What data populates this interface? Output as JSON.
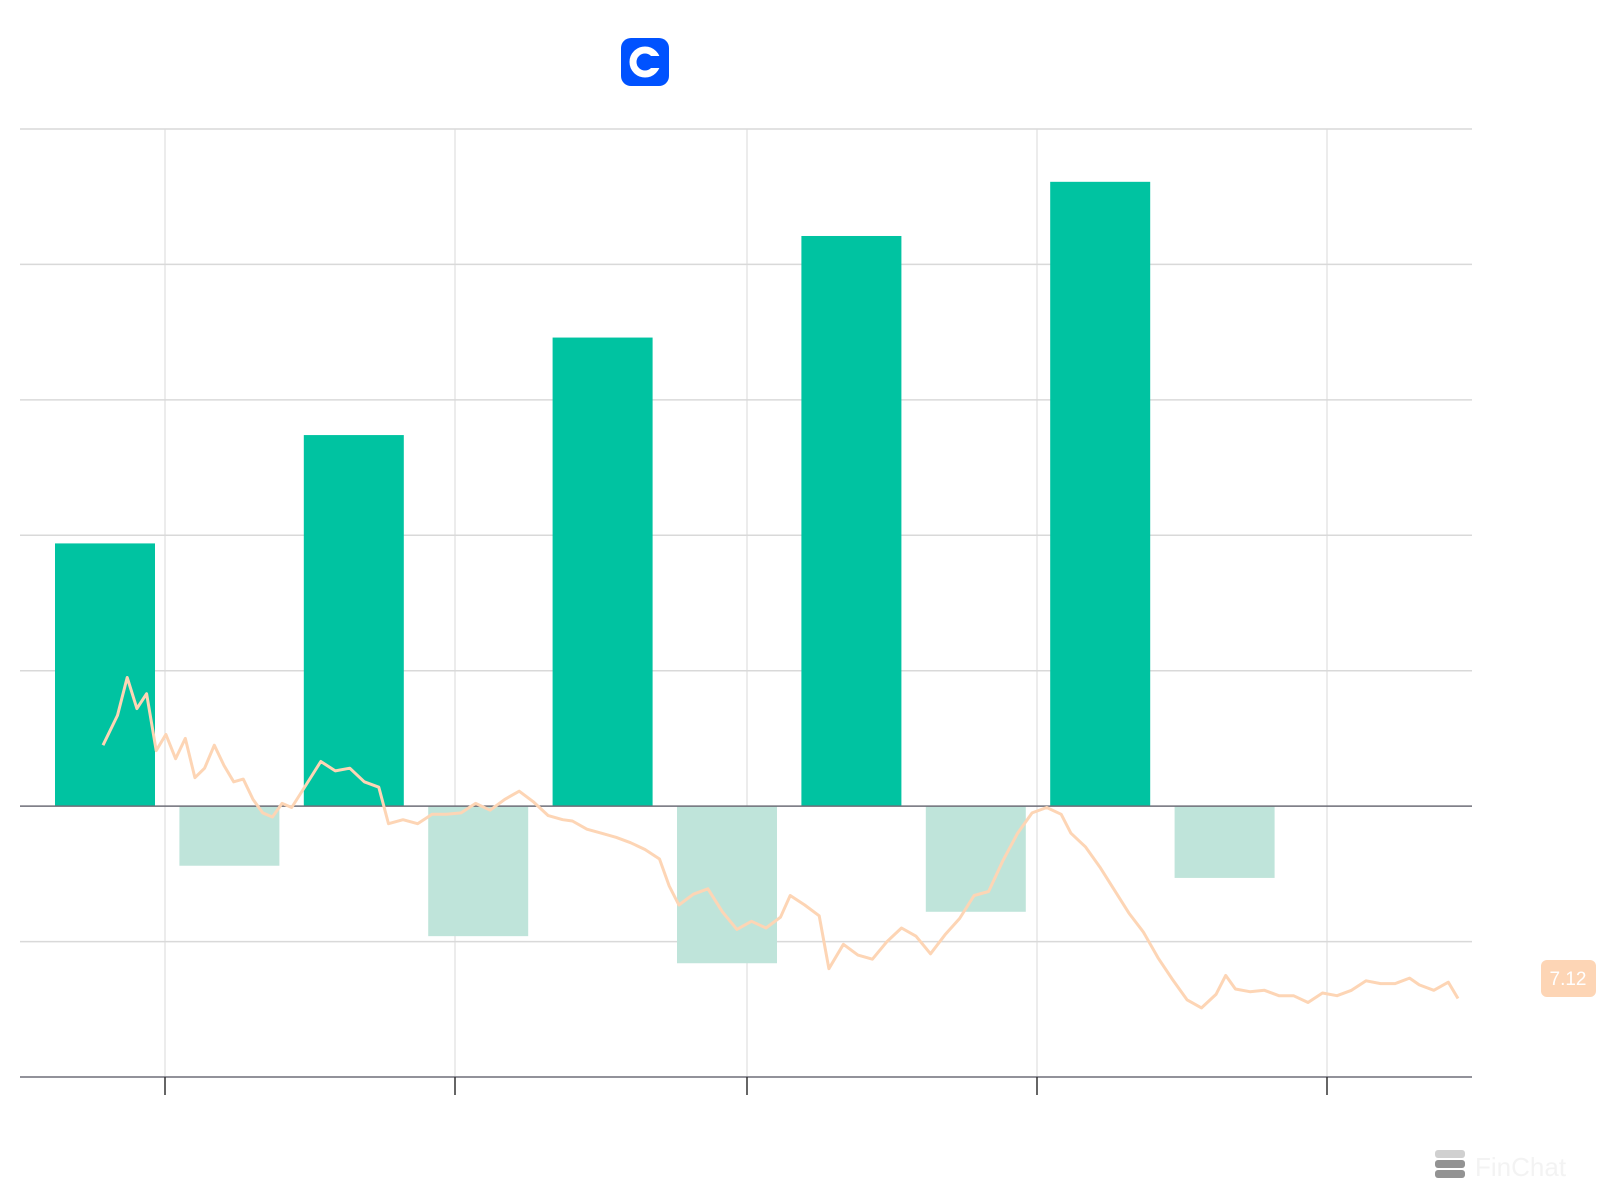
{
  "company_logo": {
    "letter": "C",
    "color": "#0052FF"
  },
  "colors": {
    "bar_positive": "#00C3A1",
    "bar_negative": "#BFE4DA",
    "price_line": "#FDD5B5",
    "grid": "#D9D9D9",
    "zero_line": "#6E6E78"
  },
  "chart_data": {
    "type": "bar",
    "grid": true,
    "series": [
      {
        "values": [
          1.94,
          -0.44,
          2.74,
          -0.96,
          3.46,
          -1.16,
          4.21,
          -0.78,
          4.61,
          -0.53
        ]
      }
    ],
    "ylim": [
      -2,
      5
    ],
    "price_line": {
      "last_value": "7.12",
      "points": [
        [
          0.0,
          0.45
        ],
        [
          0.3,
          0.67
        ],
        [
          0.5,
          0.95
        ],
        [
          0.7,
          0.72
        ],
        [
          0.9,
          0.83
        ],
        [
          1.1,
          0.41
        ],
        [
          1.3,
          0.53
        ],
        [
          1.5,
          0.35
        ],
        [
          1.7,
          0.5
        ],
        [
          1.9,
          0.21
        ],
        [
          2.1,
          0.28
        ],
        [
          2.3,
          0.45
        ],
        [
          2.5,
          0.3
        ],
        [
          2.7,
          0.18
        ],
        [
          2.9,
          0.2
        ],
        [
          3.1,
          0.05
        ],
        [
          3.3,
          -0.05
        ],
        [
          3.5,
          -0.08
        ],
        [
          3.7,
          0.02
        ],
        [
          3.9,
          -0.01
        ],
        [
          4.2,
          0.16
        ],
        [
          4.5,
          0.33
        ],
        [
          4.8,
          0.26
        ],
        [
          5.1,
          0.28
        ],
        [
          5.4,
          0.18
        ],
        [
          5.7,
          0.14
        ],
        [
          5.9,
          -0.13
        ],
        [
          6.2,
          -0.1
        ],
        [
          6.5,
          -0.13
        ],
        [
          6.8,
          -0.06
        ],
        [
          7.1,
          -0.06
        ],
        [
          7.4,
          -0.05
        ],
        [
          7.7,
          0.02
        ],
        [
          8.0,
          -0.03
        ],
        [
          8.3,
          0.05
        ],
        [
          8.6,
          0.11
        ],
        [
          8.9,
          0.03
        ],
        [
          9.2,
          -0.07
        ],
        [
          9.5,
          -0.1
        ],
        [
          9.7,
          -0.11
        ],
        [
          10.0,
          -0.17
        ],
        [
          10.3,
          -0.2
        ],
        [
          10.6,
          -0.23
        ],
        [
          10.9,
          -0.27
        ],
        [
          11.2,
          -0.32
        ],
        [
          11.5,
          -0.39
        ],
        [
          11.7,
          -0.59
        ],
        [
          11.9,
          -0.73
        ],
        [
          12.2,
          -0.65
        ],
        [
          12.5,
          -0.61
        ],
        [
          12.8,
          -0.78
        ],
        [
          13.1,
          -0.91
        ],
        [
          13.4,
          -0.85
        ],
        [
          13.7,
          -0.9
        ],
        [
          14.0,
          -0.82
        ],
        [
          14.2,
          -0.66
        ],
        [
          14.5,
          -0.73
        ],
        [
          14.8,
          -0.81
        ],
        [
          15.0,
          -1.2
        ],
        [
          15.3,
          -1.02
        ],
        [
          15.6,
          -1.1
        ],
        [
          15.9,
          -1.13
        ],
        [
          16.2,
          -1.0
        ],
        [
          16.5,
          -0.9
        ],
        [
          16.8,
          -0.96
        ],
        [
          17.1,
          -1.09
        ],
        [
          17.4,
          -0.95
        ],
        [
          17.7,
          -0.83
        ],
        [
          18.0,
          -0.66
        ],
        [
          18.3,
          -0.63
        ],
        [
          18.6,
          -0.4
        ],
        [
          18.9,
          -0.2
        ],
        [
          19.2,
          -0.05
        ],
        [
          19.5,
          -0.01
        ],
        [
          19.8,
          -0.06
        ],
        [
          20.0,
          -0.2
        ],
        [
          20.3,
          -0.3
        ],
        [
          20.6,
          -0.45
        ],
        [
          20.9,
          -0.62
        ],
        [
          21.2,
          -0.79
        ],
        [
          21.5,
          -0.93
        ],
        [
          21.8,
          -1.12
        ],
        [
          22.1,
          -1.28
        ],
        [
          22.4,
          -1.43
        ],
        [
          22.7,
          -1.49
        ],
        [
          23.0,
          -1.39
        ],
        [
          23.2,
          -1.25
        ],
        [
          23.4,
          -1.35
        ],
        [
          23.7,
          -1.37
        ],
        [
          24.0,
          -1.36
        ],
        [
          24.3,
          -1.4
        ],
        [
          24.6,
          -1.4
        ],
        [
          24.9,
          -1.45
        ],
        [
          25.2,
          -1.38
        ],
        [
          25.5,
          -1.4
        ],
        [
          25.8,
          -1.36
        ],
        [
          26.1,
          -1.29
        ],
        [
          26.4,
          -1.31
        ],
        [
          26.7,
          -1.31
        ],
        [
          27.0,
          -1.27
        ],
        [
          27.2,
          -1.32
        ],
        [
          27.5,
          -1.36
        ],
        [
          27.8,
          -1.3
        ],
        [
          28.0,
          -1.42
        ]
      ]
    }
  },
  "watermark": {
    "brand": "FinChat"
  }
}
